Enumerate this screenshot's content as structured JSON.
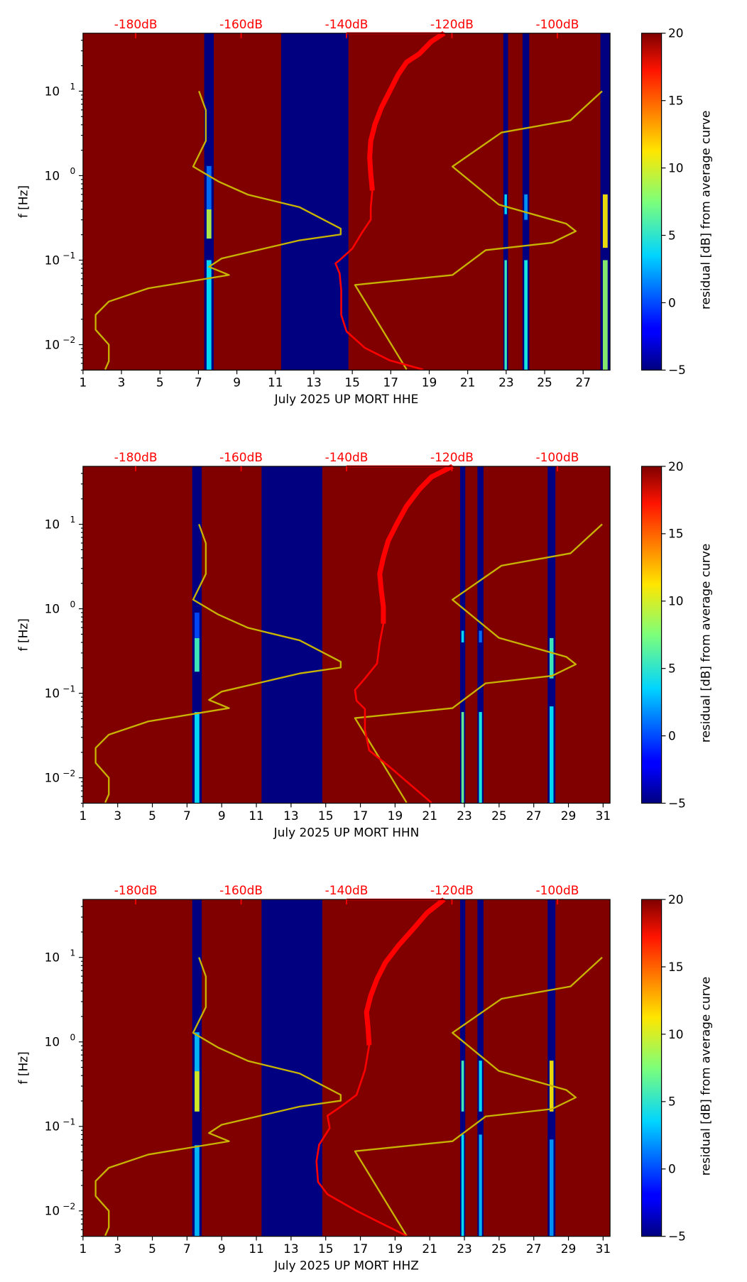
{
  "chart_data": {
    "type": "heatmap",
    "colorbar": {
      "label": "residual [dB] from average curve",
      "range": [
        -5,
        20
      ],
      "ticks": [
        "20",
        "15",
        "10",
        "5",
        "0",
        "−5"
      ],
      "tick_values": [
        20,
        15,
        10,
        5,
        0,
        -5
      ],
      "colormap": "jet"
    },
    "yaxis": {
      "label": "f [Hz]",
      "scale": "log",
      "range_hz": [
        0.005,
        48.5
      ],
      "tick_exponents": [
        "1",
        "0",
        "−1",
        "−2"
      ],
      "tick_values": [
        10,
        1,
        0.1,
        0.01
      ]
    },
    "top_axis": {
      "range_db": [
        -190,
        -90
      ],
      "tick_labels": [
        "-180dB",
        "-160dB",
        "-140dB",
        "-120dB",
        "-100dB"
      ],
      "tick_values": [
        -180,
        -160,
        -140,
        -120,
        -100
      ],
      "color": "#ff0000"
    },
    "background_residual": 20,
    "reference_curves": {
      "color": "#c8b400",
      "low_noise_model": [
        [
          -168.0,
          1
        ],
        [
          -166.7,
          0.775
        ],
        [
          -166.7,
          0.412
        ],
        [
          -169.1,
          0.108
        ],
        [
          -164.3,
          -0.069
        ],
        [
          -158.7,
          -0.225
        ],
        [
          -148.9,
          -0.373
        ],
        [
          -141.1,
          -0.627
        ],
        [
          -141.1,
          -0.696
        ],
        [
          -148.9,
          -0.765
        ],
        [
          -163.7,
          -0.98
        ],
        [
          -166.1,
          -1.078
        ],
        [
          -162.3,
          -1.176
        ],
        [
          -177.6,
          -1.333
        ],
        [
          -185.1,
          -1.49
        ],
        [
          -187.6,
          -1.647
        ],
        [
          -187.6,
          -1.824
        ],
        [
          -185.1,
          -2
        ],
        [
          -185.1,
          -2.196
        ],
        [
          -185.8,
          -2.294
        ]
      ],
      "high_noise_model": [
        [
          -91.5,
          1
        ],
        [
          -97.5,
          0.657
        ],
        [
          -110.6,
          0.51
        ],
        [
          -119.9,
          0.108
        ],
        [
          -111.1,
          -0.343
        ],
        [
          -98.3,
          -0.569
        ],
        [
          -96.5,
          -0.657
        ],
        [
          -101.0,
          -0.794
        ],
        [
          -113.6,
          -0.882
        ],
        [
          -119.9,
          -1.176
        ],
        [
          -138.4,
          -1.294
        ],
        [
          -128.6,
          -2.294
        ]
      ],
      "point_format": "[dB, log10(f Hz)]"
    },
    "panels": [
      {
        "xlabel": "July 2025 UP MORT  HHE",
        "xrange": [
          1,
          28.4
        ],
        "xticks": [
          "1",
          "3",
          "5",
          "7",
          "9",
          "11",
          "13",
          "15",
          "17",
          "19",
          "21",
          "23",
          "25",
          "27"
        ],
        "low_residual_bands": [
          {
            "days": [
              7.3,
              7.8
            ],
            "patches": [
              {
                "f": [
                  0.18,
                  0.4
                ],
                "residual": 9
              },
              {
                "f": [
                  0.4,
                  1.3
                ],
                "residual": 1
              },
              {
                "f": [
                  0.005,
                  0.1
                ],
                "residual": 4
              }
            ]
          },
          {
            "days": [
              11.3,
              14.8
            ],
            "patches": []
          },
          {
            "days": [
              22.85,
              23.1
            ],
            "patches": [
              {
                "f": [
                  0.35,
                  0.6
                ],
                "residual": 4
              },
              {
                "f": [
                  0.005,
                  0.1
                ],
                "residual": 6
              }
            ]
          },
          {
            "days": [
              23.85,
              24.2
            ],
            "patches": [
              {
                "f": [
                  0.3,
                  0.6
                ],
                "residual": 2
              },
              {
                "f": [
                  0.005,
                  0.1
                ],
                "residual": 5
              }
            ]
          },
          {
            "days": [
              27.9,
              28.4
            ],
            "patches": [
              {
                "f": [
                  0.14,
                  0.6
                ],
                "residual": 11
              },
              {
                "f": [
                  0.005,
                  0.1
                ],
                "residual": 8
              }
            ]
          }
        ],
        "mean_psd": [
          [
            -140,
            1.686
          ],
          [
            -121.5,
            1.686
          ],
          [
            -123.9,
            1.588
          ],
          [
            -126.2,
            1.441
          ],
          [
            -128.6,
            1.343
          ],
          [
            -130.2,
            1.196
          ],
          [
            -131.8,
            1
          ],
          [
            -133.4,
            0.804
          ],
          [
            -134.6,
            0.608
          ],
          [
            -135.4,
            0.412
          ],
          [
            -135.6,
            0.216
          ],
          [
            -135.4,
            0.02
          ],
          [
            -135.1,
            -0.176
          ],
          [
            -135.4,
            -0.373
          ],
          [
            -135.4,
            -0.52
          ],
          [
            -137.0,
            -0.667
          ],
          [
            -138.9,
            -0.863
          ],
          [
            -141.3,
            -1.0
          ],
          [
            -142.1,
            -1.039
          ],
          [
            -141.3,
            -1.157
          ],
          [
            -141.0,
            -1.353
          ],
          [
            -141.0,
            -1.647
          ],
          [
            -140.0,
            -1.843
          ],
          [
            -136.5,
            -2.039
          ],
          [
            -131.8,
            -2.186
          ],
          [
            -125.5,
            -2.294
          ]
        ]
      },
      {
        "xlabel": "July 2025 UP MORT  HHN",
        "xrange": [
          1,
          31.4
        ],
        "xticks": [
          "1",
          "3",
          "5",
          "7",
          "9",
          "11",
          "13",
          "15",
          "17",
          "19",
          "21",
          "23",
          "25",
          "27",
          "29",
          "31"
        ],
        "low_residual_bands": [
          {
            "days": [
              7.3,
              7.85
            ],
            "patches": [
              {
                "f": [
                  0.18,
                  0.45
                ],
                "residual": 6
              },
              {
                "f": [
                  0.45,
                  0.9
                ],
                "residual": 0
              },
              {
                "f": [
                  0.005,
                  0.06
                ],
                "residual": 4
              }
            ]
          },
          {
            "days": [
              11.3,
              14.8
            ],
            "patches": []
          },
          {
            "days": [
              22.75,
              23.05
            ],
            "patches": [
              {
                "f": [
                  0.4,
                  0.55
                ],
                "residual": 4
              },
              {
                "f": [
                  0.005,
                  0.06
                ],
                "residual": 7
              }
            ]
          },
          {
            "days": [
              23.75,
              24.1
            ],
            "patches": [
              {
                "f": [
                  0.4,
                  0.55
                ],
                "residual": 1
              },
              {
                "f": [
                  0.005,
                  0.06
                ],
                "residual": 5
              }
            ]
          },
          {
            "days": [
              27.8,
              28.25
            ],
            "patches": [
              {
                "f": [
                  0.15,
                  0.45
                ],
                "residual": 6
              },
              {
                "f": [
                  0.005,
                  0.07
                ],
                "residual": 4
              }
            ]
          }
        ],
        "mean_psd": [
          [
            -140,
            1.686
          ],
          [
            -119.9,
            1.686
          ],
          [
            -123.9,
            1.559
          ],
          [
            -126.2,
            1.412
          ],
          [
            -128.6,
            1.216
          ],
          [
            -130.5,
            1
          ],
          [
            -132.1,
            0.804
          ],
          [
            -133.0,
            0.608
          ],
          [
            -133.7,
            0.412
          ],
          [
            -133.4,
            0.216
          ],
          [
            -133.0,
            0.02
          ],
          [
            -133.0,
            -0.176
          ],
          [
            -133.7,
            -0.402
          ],
          [
            -134.2,
            -0.647
          ],
          [
            -136.5,
            -0.824
          ],
          [
            -138.4,
            -0.961
          ],
          [
            -138.1,
            -1.088
          ],
          [
            -136.5,
            -1.186
          ],
          [
            -136.5,
            -1.431
          ],
          [
            -135.7,
            -1.676
          ],
          [
            -131.8,
            -1.873
          ],
          [
            -123.9,
            -2.294
          ]
        ]
      },
      {
        "xlabel": "July 2025 UP MORT  HHZ",
        "xrange": [
          1,
          31.4
        ],
        "xticks": [
          "1",
          "3",
          "5",
          "7",
          "9",
          "11",
          "13",
          "15",
          "17",
          "19",
          "21",
          "23",
          "25",
          "27",
          "29",
          "31"
        ],
        "low_residual_bands": [
          {
            "days": [
              7.3,
              7.85
            ],
            "patches": [
              {
                "f": [
                  0.15,
                  0.45
                ],
                "residual": 10
              },
              {
                "f": [
                  0.45,
                  1.3
                ],
                "residual": 3
              },
              {
                "f": [
                  0.005,
                  0.06
                ],
                "residual": 3
              }
            ]
          },
          {
            "days": [
              11.3,
              14.8
            ],
            "patches": []
          },
          {
            "days": [
              22.75,
              23.05
            ],
            "patches": [
              {
                "f": [
                  0.15,
                  0.6
                ],
                "residual": 6
              },
              {
                "f": [
                  0.005,
                  0.08
                ],
                "residual": 4
              }
            ]
          },
          {
            "days": [
              23.75,
              24.1
            ],
            "patches": [
              {
                "f": [
                  0.15,
                  0.6
                ],
                "residual": 4
              },
              {
                "f": [
                  0.005,
                  0.08
                ],
                "residual": 3
              }
            ]
          },
          {
            "days": [
              27.8,
              28.25
            ],
            "patches": [
              {
                "f": [
                  0.15,
                  0.6
                ],
                "residual": 11
              },
              {
                "f": [
                  0.005,
                  0.07
                ],
                "residual": 2
              }
            ]
          }
        ],
        "mean_psd": [
          [
            -140,
            1.686
          ],
          [
            -121.5,
            1.686
          ],
          [
            -124.7,
            1.529
          ],
          [
            -127.4,
            1.333
          ],
          [
            -130.2,
            1.137
          ],
          [
            -132.6,
            0.941
          ],
          [
            -134.2,
            0.745
          ],
          [
            -135.4,
            0.549
          ],
          [
            -136.2,
            0.353
          ],
          [
            -135.9,
            0.157
          ],
          [
            -135.7,
            -0.039
          ],
          [
            -136.5,
            -0.333
          ],
          [
            -138.1,
            -0.627
          ],
          [
            -141.3,
            -0.775
          ],
          [
            -143.6,
            -0.873
          ],
          [
            -143.2,
            -1.02
          ],
          [
            -145.2,
            -1.216
          ],
          [
            -145.7,
            -1.412
          ],
          [
            -145.4,
            -1.657
          ],
          [
            -143.6,
            -1.804
          ],
          [
            -138.1,
            -2
          ],
          [
            -133.4,
            -2.147
          ],
          [
            -128.6,
            -2.294
          ]
        ]
      }
    ]
  }
}
